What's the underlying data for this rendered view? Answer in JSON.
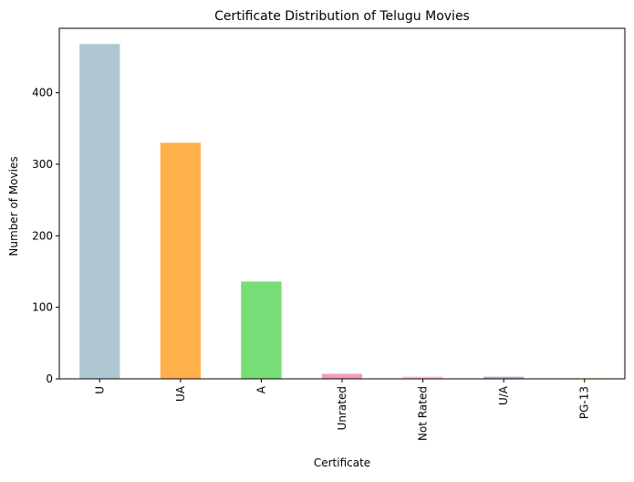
{
  "chart_data": {
    "type": "bar",
    "title": "Certificate Distribution of Telugu Movies",
    "xlabel": "Certificate",
    "ylabel": "Number of Movies",
    "categories": [
      "U",
      "UA",
      "A",
      "Unrated",
      "Not Rated",
      "U/A",
      "PG-13"
    ],
    "values": [
      468,
      330,
      136,
      7,
      3,
      3,
      1
    ],
    "colors": [
      "#aec7d1",
      "#ffb04a",
      "#77dd77",
      "#f49ac1",
      "#ffc0cb",
      "#c3a6d8",
      "#fdfd96"
    ],
    "ylim": [
      0,
      490
    ],
    "yticks": [
      0,
      100,
      200,
      300,
      400
    ],
    "grid": false,
    "legend": false
  }
}
